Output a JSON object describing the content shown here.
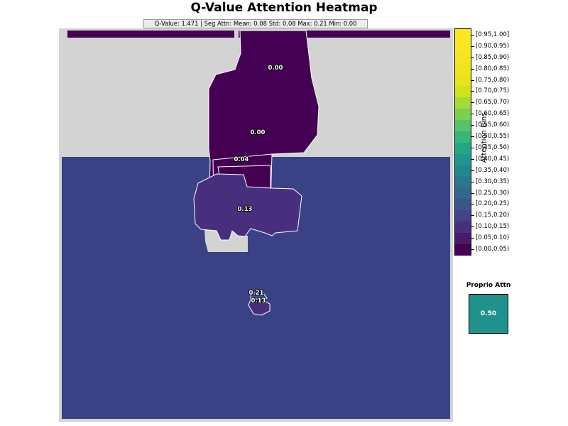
{
  "chart_data": {
    "type": "heatmap",
    "title": "Q-Value Attention Heatmap",
    "stats_text": "Q-Value: 1.471  |  Seg Attn: Mean: 0.08 Std: 0.08 Max: 0.21 Min: 0.00",
    "colormap": "viridis",
    "colorbar": {
      "label": "Attention Bins",
      "bins": [
        "[0.00,0.05)",
        "[0.05,0.10)",
        "[0.10,0.15)",
        "[0.15,0.20)",
        "[0.20,0.25)",
        "[0.25,0.30)",
        "[0.30,0.35)",
        "[0.35,0.40)",
        "[0.40,0.45)",
        "[0.45,0.50)",
        "[0.50,0.55)",
        "[0.55,0.60)",
        "[0.60,0.65)",
        "[0.65,0.70)",
        "[0.70,0.75)",
        "[0.75,0.80)",
        "[0.80,0.85)",
        "[0.85,0.90)",
        "[0.90,0.95)",
        "[0.95,1.00]"
      ],
      "colors": [
        "#440154",
        "#481a6c",
        "#472f7d",
        "#414487",
        "#39568c",
        "#31688e",
        "#2a788e",
        "#23888e",
        "#1f988b",
        "#22a884",
        "#35b779",
        "#54c568",
        "#7ad151",
        "#a5db36",
        "#d2e21b",
        "#e8e419",
        "#f0e51c",
        "#f6e620",
        "#fae622",
        "#fde725"
      ]
    },
    "segments": [
      {
        "value": 0.0,
        "label": "0.00"
      },
      {
        "value": 0.0,
        "label": "0.00"
      },
      {
        "value": 0.04,
        "label": "0.04"
      },
      {
        "value": 0.13,
        "label": "0.13"
      },
      {
        "value": 0.21,
        "label": "0.21"
      },
      {
        "value": 0.13,
        "label": "0.13"
      }
    ],
    "proprio": {
      "title": "Proprio Attn",
      "value": 0.5,
      "label": "0.50"
    }
  }
}
